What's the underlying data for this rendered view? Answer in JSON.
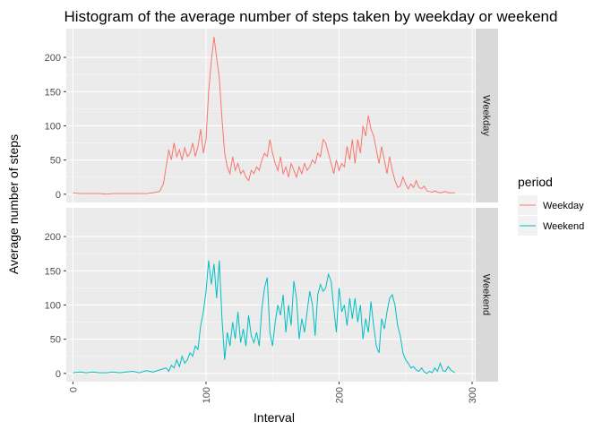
{
  "chart_data": {
    "type": "line",
    "title": "Histogram of the average number of steps taken by weekday or weekend",
    "xlabel": "Interval",
    "ylabel": "Average number of steps",
    "xlim": [
      -5,
      302
    ],
    "ylim": [
      -12,
      242
    ],
    "x_ticks": [
      0,
      100,
      200,
      300
    ],
    "y_ticks": [
      0,
      50,
      100,
      150,
      200
    ],
    "grid": true,
    "facet": "rows",
    "legend": {
      "title": "period",
      "position": "right"
    },
    "series": [
      {
        "name": "Weekday",
        "panel_label": "Weekday",
        "color": "#F8766D",
        "points": [
          [
            0,
            2
          ],
          [
            5,
            1
          ],
          [
            10,
            1
          ],
          [
            15,
            1
          ],
          [
            20,
            1
          ],
          [
            25,
            0
          ],
          [
            30,
            1
          ],
          [
            35,
            1
          ],
          [
            40,
            1
          ],
          [
            45,
            1
          ],
          [
            50,
            1
          ],
          [
            55,
            1
          ],
          [
            60,
            2
          ],
          [
            65,
            4
          ],
          [
            68,
            15
          ],
          [
            70,
            40
          ],
          [
            72,
            65
          ],
          [
            74,
            50
          ],
          [
            76,
            75
          ],
          [
            78,
            55
          ],
          [
            80,
            65
          ],
          [
            82,
            50
          ],
          [
            84,
            68
          ],
          [
            86,
            55
          ],
          [
            88,
            60
          ],
          [
            90,
            75
          ],
          [
            92,
            55
          ],
          [
            94,
            70
          ],
          [
            96,
            95
          ],
          [
            98,
            60
          ],
          [
            100,
            80
          ],
          [
            102,
            150
          ],
          [
            104,
            195
          ],
          [
            106,
            230
          ],
          [
            108,
            200
          ],
          [
            110,
            170
          ],
          [
            112,
            110
          ],
          [
            114,
            60
          ],
          [
            116,
            40
          ],
          [
            118,
            30
          ],
          [
            120,
            55
          ],
          [
            122,
            35
          ],
          [
            124,
            45
          ],
          [
            126,
            30
          ],
          [
            128,
            35
          ],
          [
            130,
            25
          ],
          [
            132,
            20
          ],
          [
            134,
            35
          ],
          [
            136,
            30
          ],
          [
            138,
            40
          ],
          [
            140,
            35
          ],
          [
            142,
            50
          ],
          [
            144,
            60
          ],
          [
            146,
            55
          ],
          [
            148,
            80
          ],
          [
            150,
            60
          ],
          [
            152,
            45
          ],
          [
            154,
            35
          ],
          [
            156,
            55
          ],
          [
            158,
            30
          ],
          [
            160,
            40
          ],
          [
            162,
            25
          ],
          [
            164,
            45
          ],
          [
            166,
            35
          ],
          [
            168,
            25
          ],
          [
            170,
            40
          ],
          [
            172,
            30
          ],
          [
            174,
            45
          ],
          [
            176,
            35
          ],
          [
            178,
            40
          ],
          [
            180,
            50
          ],
          [
            182,
            45
          ],
          [
            184,
            60
          ],
          [
            186,
            55
          ],
          [
            188,
            80
          ],
          [
            190,
            75
          ],
          [
            192,
            60
          ],
          [
            194,
            45
          ],
          [
            196,
            30
          ],
          [
            198,
            50
          ],
          [
            200,
            35
          ],
          [
            202,
            45
          ],
          [
            204,
            40
          ],
          [
            206,
            70
          ],
          [
            208,
            50
          ],
          [
            210,
            80
          ],
          [
            212,
            45
          ],
          [
            214,
            80
          ],
          [
            216,
            60
          ],
          [
            218,
            100
          ],
          [
            220,
            85
          ],
          [
            222,
            115
          ],
          [
            224,
            95
          ],
          [
            226,
            85
          ],
          [
            228,
            65
          ],
          [
            230,
            45
          ],
          [
            232,
            70
          ],
          [
            234,
            50
          ],
          [
            236,
            30
          ],
          [
            238,
            55
          ],
          [
            240,
            35
          ],
          [
            242,
            20
          ],
          [
            244,
            10
          ],
          [
            246,
            12
          ],
          [
            248,
            25
          ],
          [
            250,
            15
          ],
          [
            252,
            8
          ],
          [
            254,
            15
          ],
          [
            256,
            10
          ],
          [
            258,
            20
          ],
          [
            260,
            10
          ],
          [
            262,
            8
          ],
          [
            264,
            12
          ],
          [
            266,
            5
          ],
          [
            268,
            4
          ],
          [
            270,
            3
          ],
          [
            272,
            5
          ],
          [
            274,
            3
          ],
          [
            276,
            2
          ],
          [
            278,
            3
          ],
          [
            280,
            4
          ],
          [
            282,
            2
          ],
          [
            284,
            2
          ],
          [
            287,
            2
          ]
        ]
      },
      {
        "name": "Weekend",
        "panel_label": "Weekend",
        "color": "#00BFC4",
        "points": [
          [
            0,
            1
          ],
          [
            5,
            2
          ],
          [
            10,
            1
          ],
          [
            15,
            2
          ],
          [
            20,
            1
          ],
          [
            25,
            1
          ],
          [
            30,
            2
          ],
          [
            35,
            1
          ],
          [
            40,
            2
          ],
          [
            45,
            3
          ],
          [
            50,
            1
          ],
          [
            55,
            4
          ],
          [
            60,
            2
          ],
          [
            65,
            5
          ],
          [
            70,
            8
          ],
          [
            72,
            3
          ],
          [
            74,
            12
          ],
          [
            76,
            8
          ],
          [
            78,
            20
          ],
          [
            80,
            10
          ],
          [
            82,
            25
          ],
          [
            84,
            15
          ],
          [
            86,
            20
          ],
          [
            88,
            30
          ],
          [
            90,
            25
          ],
          [
            92,
            40
          ],
          [
            94,
            35
          ],
          [
            96,
            70
          ],
          [
            98,
            90
          ],
          [
            100,
            120
          ],
          [
            102,
            165
          ],
          [
            104,
            130
          ],
          [
            106,
            160
          ],
          [
            108,
            110
          ],
          [
            110,
            165
          ],
          [
            112,
            80
          ],
          [
            114,
            20
          ],
          [
            116,
            60
          ],
          [
            118,
            40
          ],
          [
            120,
            75
          ],
          [
            122,
            50
          ],
          [
            124,
            90
          ],
          [
            126,
            45
          ],
          [
            128,
            65
          ],
          [
            130,
            40
          ],
          [
            132,
            85
          ],
          [
            134,
            55
          ],
          [
            136,
            45
          ],
          [
            138,
            60
          ],
          [
            140,
            40
          ],
          [
            142,
            95
          ],
          [
            144,
            125
          ],
          [
            146,
            140
          ],
          [
            148,
            60
          ],
          [
            150,
            40
          ],
          [
            152,
            75
          ],
          [
            154,
            100
          ],
          [
            156,
            85
          ],
          [
            158,
            115
          ],
          [
            160,
            60
          ],
          [
            162,
            100
          ],
          [
            164,
            70
          ],
          [
            166,
            135
          ],
          [
            168,
            110
          ],
          [
            170,
            50
          ],
          [
            172,
            80
          ],
          [
            174,
            60
          ],
          [
            176,
            90
          ],
          [
            178,
            120
          ],
          [
            180,
            100
          ],
          [
            182,
            55
          ],
          [
            184,
            115
          ],
          [
            186,
            130
          ],
          [
            188,
            120
          ],
          [
            190,
            125
          ],
          [
            192,
            145
          ],
          [
            194,
            135
          ],
          [
            196,
            95
          ],
          [
            198,
            60
          ],
          [
            200,
            125
          ],
          [
            202,
            90
          ],
          [
            204,
            100
          ],
          [
            206,
            70
          ],
          [
            208,
            110
          ],
          [
            210,
            80
          ],
          [
            212,
            110
          ],
          [
            214,
            75
          ],
          [
            216,
            100
          ],
          [
            218,
            50
          ],
          [
            220,
            80
          ],
          [
            222,
            60
          ],
          [
            224,
            105
          ],
          [
            226,
            70
          ],
          [
            228,
            40
          ],
          [
            230,
            30
          ],
          [
            232,
            80
          ],
          [
            234,
            65
          ],
          [
            236,
            90
          ],
          [
            238,
            110
          ],
          [
            240,
            115
          ],
          [
            242,
            100
          ],
          [
            244,
            70
          ],
          [
            246,
            55
          ],
          [
            248,
            30
          ],
          [
            250,
            20
          ],
          [
            252,
            15
          ],
          [
            254,
            8
          ],
          [
            256,
            10
          ],
          [
            258,
            5
          ],
          [
            260,
            3
          ],
          [
            262,
            8
          ],
          [
            264,
            2
          ],
          [
            266,
            0
          ],
          [
            268,
            3
          ],
          [
            270,
            1
          ],
          [
            272,
            8
          ],
          [
            274,
            3
          ],
          [
            276,
            15
          ],
          [
            278,
            4
          ],
          [
            280,
            3
          ],
          [
            282,
            10
          ],
          [
            284,
            5
          ],
          [
            287,
            1
          ]
        ]
      }
    ]
  }
}
